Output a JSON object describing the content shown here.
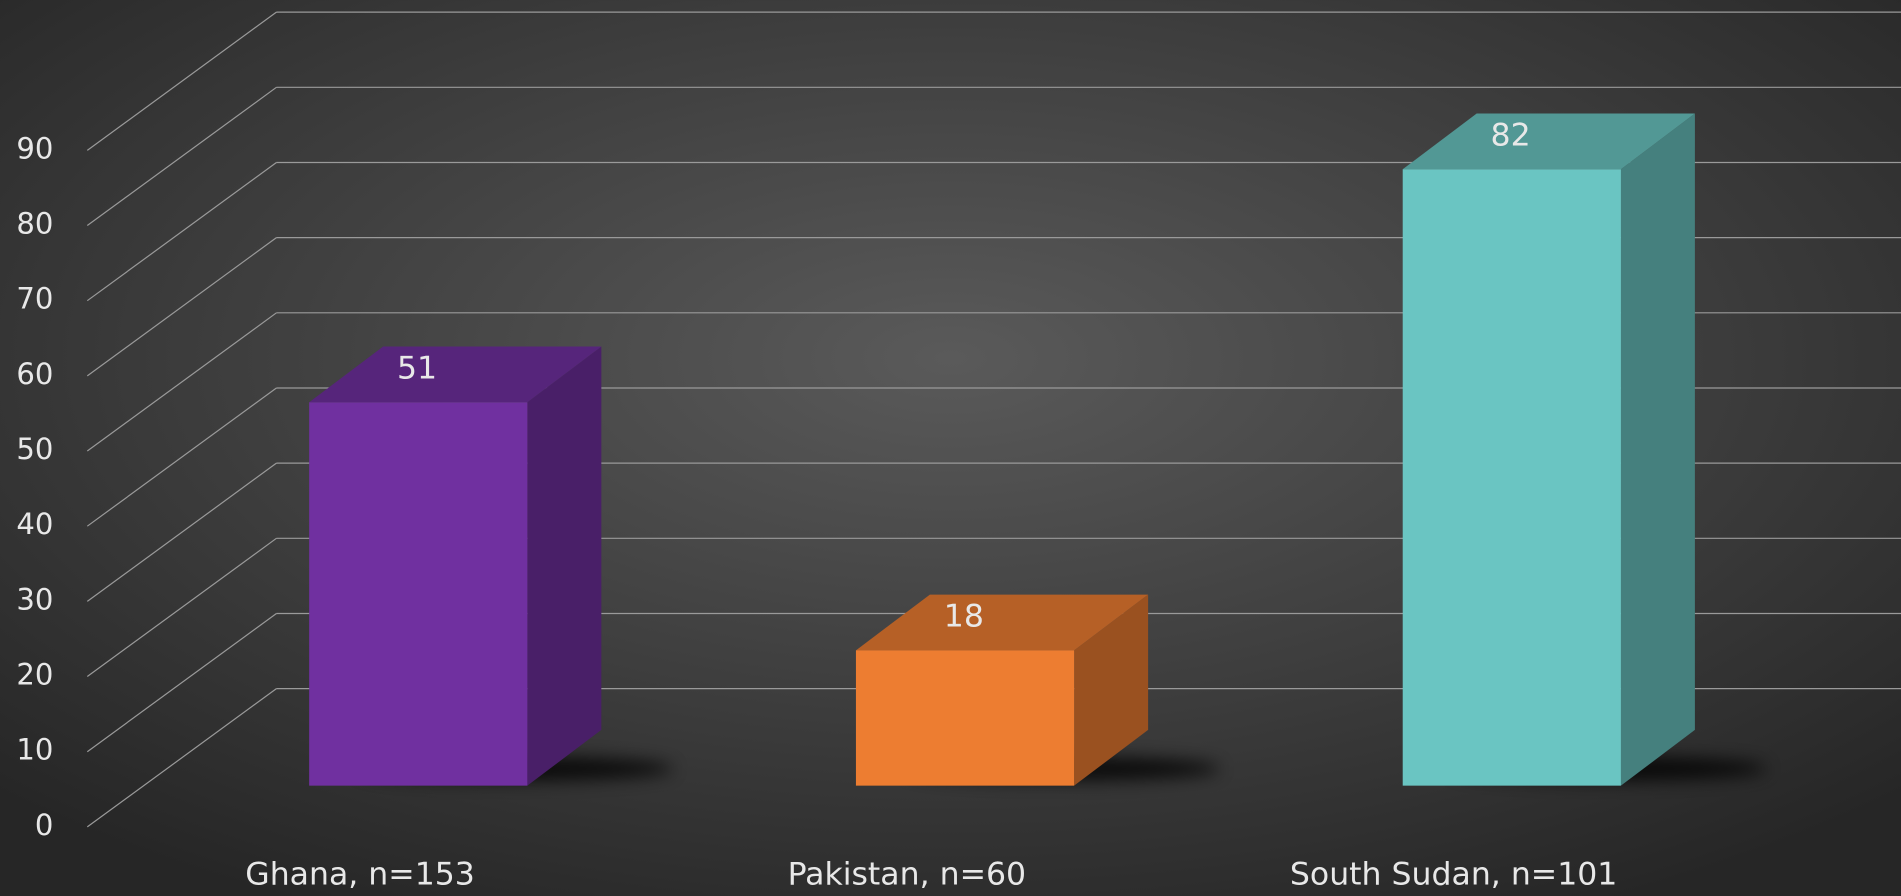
{
  "chart_data": {
    "type": "bar3d",
    "categories": [
      "Ghana, n=153",
      "Pakistan, n=60",
      "South Sudan, n=101"
    ],
    "values": [
      51,
      18,
      82
    ],
    "colors": [
      "#7030a0",
      "#ed7d31",
      "#6ac5c2"
    ],
    "ylim": [
      0,
      90
    ],
    "yticks": [
      0,
      10,
      20,
      30,
      40,
      50,
      60,
      70,
      80,
      90
    ],
    "grid": true
  }
}
